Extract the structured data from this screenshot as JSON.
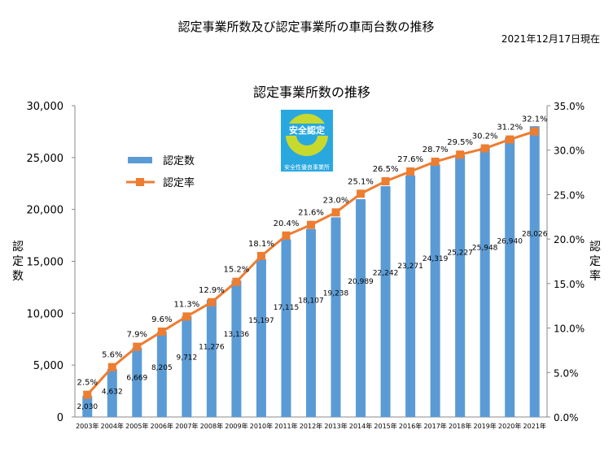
{
  "header": {
    "main_title": "認定事業所数及び認定事業所の車両台数の推移",
    "date": "2021年12月17日現在"
  },
  "logo": {
    "text": "安全認定",
    "subtext": "安全性優良事業所"
  },
  "chart_data": {
    "type": "bar",
    "title": "認定事業所数の推移",
    "categories": [
      "2003年",
      "2004年",
      "2005年",
      "2006年",
      "2007年",
      "2008年",
      "2009年",
      "2010年",
      "2011年",
      "2012年",
      "2013年",
      "2014年",
      "2015年",
      "2016年",
      "2017年",
      "2018年",
      "2019年",
      "2020年",
      "2021年"
    ],
    "series": [
      {
        "name": "認定数",
        "type": "bar",
        "axis": "left",
        "color": "#5b9bd5",
        "values": [
          2030,
          4632,
          6669,
          8205,
          9712,
          11276,
          13136,
          15197,
          17115,
          18107,
          19238,
          20989,
          22242,
          23271,
          24319,
          25227,
          25948,
          26940,
          28026
        ],
        "labels": [
          "2,030",
          "4,632",
          "6,669",
          "8,205",
          "9,712",
          "11,276",
          "13,136",
          "15,197",
          "17,115",
          "18,107",
          "19,238",
          "20,989",
          "22,242",
          "23,271",
          "24,319",
          "25,227",
          "25,948",
          "26,940",
          "28,026"
        ]
      },
      {
        "name": "認定率",
        "type": "line",
        "axis": "right",
        "color": "#ed7d31",
        "values": [
          2.5,
          5.6,
          7.9,
          9.6,
          11.3,
          12.9,
          15.2,
          18.1,
          20.4,
          21.6,
          23.0,
          25.1,
          26.5,
          27.6,
          28.7,
          29.5,
          30.2,
          31.2,
          32.1
        ],
        "labels": [
          "2.5%",
          "5.6%",
          "7.9%",
          "9.6%",
          "11.3%",
          "12.9%",
          "15.2%",
          "18.1%",
          "20.4%",
          "21.6%",
          "23.0%",
          "25.1%",
          "26.5%",
          "27.6%",
          "28.7%",
          "29.5%",
          "30.2%",
          "31.2%",
          "32.1%"
        ]
      }
    ],
    "ylabel": "認定数",
    "y2label": "認定率",
    "ylim": [
      0,
      30000
    ],
    "y2lim": [
      0,
      35
    ],
    "yticks": [
      "0",
      "5,000",
      "10,000",
      "15,000",
      "20,000",
      "25,000",
      "30,000"
    ],
    "y2ticks": [
      "0.0%",
      "5.0%",
      "10.0%",
      "15.0%",
      "20.0%",
      "25.0%",
      "30.0%",
      "35.0%"
    ],
    "legend": "upper-left",
    "grid": false
  }
}
